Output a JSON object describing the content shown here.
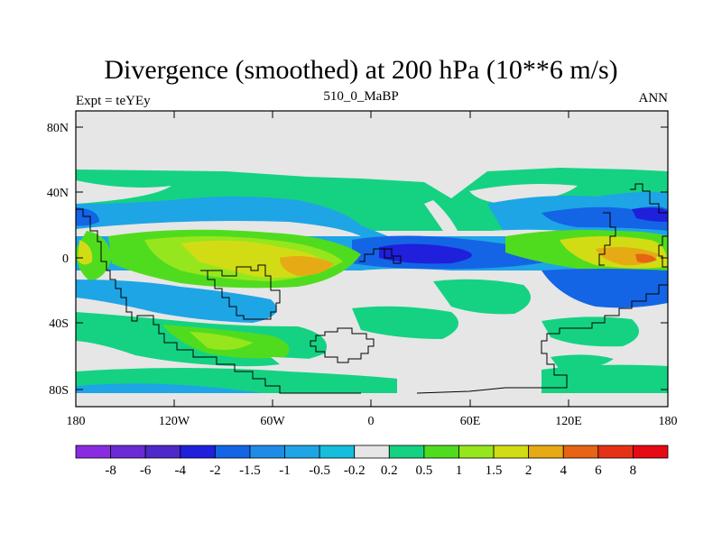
{
  "title": "Divergence (smoothed) at 200 hPa (10**6 m/s)",
  "left_string": "Expt = teYEy",
  "center_string": "510_0_MaBP",
  "right_string": "ANN",
  "y_ticks": [
    "80N",
    "40N",
    "0",
    "40S",
    "80S"
  ],
  "x_ticks": [
    "180",
    "120W",
    "60W",
    "0",
    "60E",
    "120E",
    "180"
  ],
  "colorbar": {
    "labels": [
      "-8",
      "-6",
      "-4",
      "-2",
      "-1.5",
      "-1",
      "-0.5",
      "-0.2",
      "0.2",
      "0.5",
      "1",
      "1.5",
      "2",
      "4",
      "6",
      "8"
    ],
    "colors": [
      "#8a2be2",
      "#6a2ad6",
      "#4d29c9",
      "#1f1fdc",
      "#1464e6",
      "#1e8ce6",
      "#1ea5e6",
      "#14bedc",
      "#e6e6e6",
      "#14d282",
      "#50dc1e",
      "#96e61e",
      "#d2dc14",
      "#e6aa14",
      "#e66414",
      "#e63214",
      "#e60a14"
    ]
  },
  "colors": {
    "background": "#e6e6e6",
    "outline": "#000000"
  }
}
